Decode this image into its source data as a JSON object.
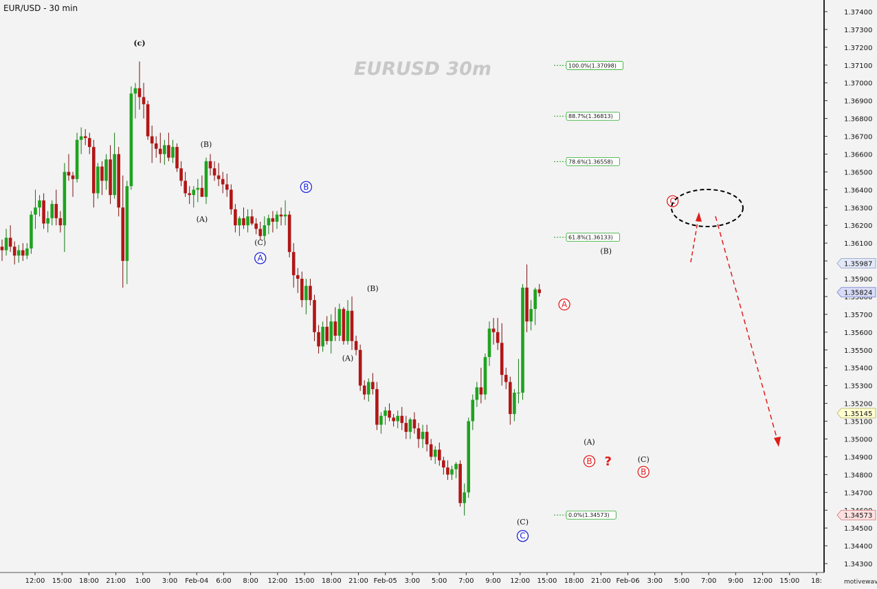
{
  "title": "EUR/USD - 30 min",
  "watermark": "EURUSD  30m",
  "brand": "motivewave.com",
  "colors": {
    "up": "#1fa31f",
    "down": "#b11616",
    "blue": "#1d22d6",
    "red": "#e21b1b",
    "fib": "#22a822",
    "bg": "#f3f3f3"
  },
  "chart_data": {
    "type": "candlestick",
    "ylim": [
      1.3425,
      1.3745
    ],
    "y_ticks": [
      1.343,
      1.344,
      1.345,
      1.346,
      1.347,
      1.348,
      1.349,
      1.35,
      1.351,
      1.352,
      1.353,
      1.354,
      1.355,
      1.356,
      1.357,
      1.358,
      1.359,
      1.36,
      1.361,
      1.362,
      1.363,
      1.364,
      1.365,
      1.366,
      1.367,
      1.368,
      1.369,
      1.37,
      1.371,
      1.372,
      1.373,
      1.374
    ],
    "price_tags": [
      {
        "label": "1.35987",
        "value": 1.35987,
        "color": "#e3e8f8",
        "border": "#8a9ac8"
      },
      {
        "label": "1.35824",
        "value": 1.35824,
        "color": "#d8dcf6",
        "border": "#6c7ac8"
      },
      {
        "label": "1.35145",
        "value": 1.35145,
        "color": "#ffffd0",
        "border": "#b0b060"
      },
      {
        "label": "1.34573",
        "value": 1.34573,
        "color": "#fde0e0",
        "border": "#d07070"
      }
    ],
    "x_ticks": [
      "12:00",
      "15:00",
      "18:00",
      "21:00",
      "1:00",
      "3:00",
      "Feb-04",
      "6:00",
      "8:00",
      "12:00",
      "15:00",
      "18:00",
      "21:00",
      "Feb-05",
      "3:00",
      "5:00",
      "7:00",
      "9:00",
      "12:00",
      "15:00",
      "18:00",
      "21:00",
      "Feb-06",
      "3:00",
      "5:00",
      "7:00",
      "9:00",
      "12:00",
      "15:00",
      "18:"
    ],
    "fib_levels": [
      {
        "label": "100.0%(1.37098)",
        "value": 1.37098
      },
      {
        "label": "88.7%(1.36813)",
        "value": 1.36813
      },
      {
        "label": "78.6%(1.36558)",
        "value": 1.36558
      },
      {
        "label": "61.8%(1.36133)",
        "value": 1.36133
      },
      {
        "label": "0.0%(1.34573)",
        "value": 1.34573
      }
    ],
    "candles": [
      [
        1.3608,
        1.3612,
        1.36,
        1.3606
      ],
      [
        1.3606,
        1.3618,
        1.3603,
        1.3613
      ],
      [
        1.3613,
        1.362,
        1.3605,
        1.3608
      ],
      [
        1.3608,
        1.3611,
        1.3598,
        1.3603
      ],
      [
        1.3603,
        1.3609,
        1.3599,
        1.3606
      ],
      [
        1.3606,
        1.361,
        1.36,
        1.3603
      ],
      [
        1.3603,
        1.361,
        1.3601,
        1.3607
      ],
      [
        1.3607,
        1.3628,
        1.3604,
        1.3626
      ],
      [
        1.3626,
        1.364,
        1.3618,
        1.363
      ],
      [
        1.363,
        1.3637,
        1.3625,
        1.3634
      ],
      [
        1.3634,
        1.3638,
        1.3618,
        1.3621
      ],
      [
        1.3621,
        1.3628,
        1.3616,
        1.3624
      ],
      [
        1.3624,
        1.3634,
        1.362,
        1.3632
      ],
      [
        1.3632,
        1.364,
        1.362,
        1.3624
      ],
      [
        1.3624,
        1.3628,
        1.3616,
        1.362
      ],
      [
        1.362,
        1.3655,
        1.3605,
        1.365
      ],
      [
        1.365,
        1.366,
        1.3645,
        1.3648
      ],
      [
        1.3648,
        1.365,
        1.3636,
        1.3646
      ],
      [
        1.3646,
        1.3672,
        1.3644,
        1.3668
      ],
      [
        1.3668,
        1.3675,
        1.366,
        1.367
      ],
      [
        1.367,
        1.3674,
        1.3665,
        1.3669
      ],
      [
        1.3669,
        1.3672,
        1.366,
        1.3664
      ],
      [
        1.3664,
        1.3668,
        1.363,
        1.3638
      ],
      [
        1.3638,
        1.3655,
        1.3635,
        1.3653
      ],
      [
        1.3653,
        1.3656,
        1.3637,
        1.3645
      ],
      [
        1.3645,
        1.366,
        1.364,
        1.3657
      ],
      [
        1.3657,
        1.3665,
        1.3632,
        1.3637
      ],
      [
        1.3637,
        1.3672,
        1.3635,
        1.366
      ],
      [
        1.366,
        1.3664,
        1.3625,
        1.363
      ],
      [
        1.363,
        1.3648,
        1.3585,
        1.36
      ],
      [
        1.36,
        1.3645,
        1.3587,
        1.3642
      ],
      [
        1.3642,
        1.3698,
        1.364,
        1.3694
      ],
      [
        1.3694,
        1.37,
        1.368,
        1.3697
      ],
      [
        1.3697,
        1.3712,
        1.3685,
        1.3692
      ],
      [
        1.3692,
        1.37,
        1.368,
        1.3688
      ],
      [
        1.3688,
        1.369,
        1.3668,
        1.367
      ],
      [
        1.367,
        1.3676,
        1.3655,
        1.3666
      ],
      [
        1.3666,
        1.367,
        1.3658,
        1.3663
      ],
      [
        1.3663,
        1.3672,
        1.3655,
        1.366
      ],
      [
        1.366,
        1.3668,
        1.3654,
        1.3665
      ],
      [
        1.3665,
        1.3672,
        1.3656,
        1.3658
      ],
      [
        1.3658,
        1.3668,
        1.3655,
        1.3664
      ],
      [
        1.3664,
        1.3666,
        1.365,
        1.3652
      ],
      [
        1.3652,
        1.3656,
        1.3642,
        1.3645
      ],
      [
        1.3645,
        1.365,
        1.3636,
        1.3638
      ],
      [
        1.3638,
        1.3642,
        1.3632,
        1.3637
      ],
      [
        1.3637,
        1.3642,
        1.363,
        1.364
      ],
      [
        1.364,
        1.3646,
        1.3633,
        1.3641
      ],
      [
        1.3641,
        1.3648,
        1.3636,
        1.3636
      ],
      [
        1.3636,
        1.3658,
        1.3632,
        1.3656
      ],
      [
        1.3656,
        1.366,
        1.3648,
        1.3652
      ],
      [
        1.3652,
        1.3656,
        1.3645,
        1.3648
      ],
      [
        1.3648,
        1.3655,
        1.3642,
        1.3646
      ],
      [
        1.3646,
        1.365,
        1.3638,
        1.3643
      ],
      [
        1.3643,
        1.3649,
        1.3636,
        1.364
      ],
      [
        1.364,
        1.3643,
        1.3626,
        1.3629
      ],
      [
        1.3629,
        1.3632,
        1.3616,
        1.362
      ],
      [
        1.362,
        1.3625,
        1.3614,
        1.3624
      ],
      [
        1.3624,
        1.363,
        1.3618,
        1.362
      ],
      [
        1.362,
        1.3629,
        1.3616,
        1.3625
      ],
      [
        1.3625,
        1.3629,
        1.362,
        1.3621
      ],
      [
        1.3621,
        1.3624,
        1.3615,
        1.3618
      ],
      [
        1.3618,
        1.3622,
        1.3612,
        1.3614
      ],
      [
        1.3614,
        1.3625,
        1.3612,
        1.362
      ],
      [
        1.362,
        1.3626,
        1.3615,
        1.3624
      ],
      [
        1.3624,
        1.3628,
        1.3616,
        1.3622
      ],
      [
        1.3622,
        1.3628,
        1.3618,
        1.3626
      ],
      [
        1.3626,
        1.363,
        1.362,
        1.3625
      ],
      [
        1.3625,
        1.3634,
        1.362,
        1.3626
      ],
      [
        1.3626,
        1.3628,
        1.3602,
        1.3605
      ],
      [
        1.3605,
        1.361,
        1.3585,
        1.3592
      ],
      [
        1.3592,
        1.3596,
        1.3582,
        1.359
      ],
      [
        1.359,
        1.3594,
        1.3574,
        1.3578
      ],
      [
        1.3578,
        1.359,
        1.357,
        1.3586
      ],
      [
        1.3586,
        1.359,
        1.3575,
        1.3578
      ],
      [
        1.3578,
        1.3581,
        1.3555,
        1.356
      ],
      [
        1.356,
        1.3564,
        1.3548,
        1.3552
      ],
      [
        1.3552,
        1.3566,
        1.3549,
        1.3563
      ],
      [
        1.3563,
        1.3569,
        1.3553,
        1.3555
      ],
      [
        1.3555,
        1.357,
        1.3548,
        1.3566
      ],
      [
        1.3566,
        1.3574,
        1.3555,
        1.3558
      ],
      [
        1.3558,
        1.3576,
        1.3555,
        1.3573
      ],
      [
        1.3573,
        1.3574,
        1.3553,
        1.3555
      ],
      [
        1.3555,
        1.3578,
        1.3553,
        1.3572
      ],
      [
        1.3572,
        1.358,
        1.355,
        1.3555
      ],
      [
        1.3555,
        1.3558,
        1.3547,
        1.355
      ],
      [
        1.355,
        1.3553,
        1.3527,
        1.353
      ],
      [
        1.353,
        1.3533,
        1.3522,
        1.3525
      ],
      [
        1.3525,
        1.3534,
        1.3521,
        1.3532
      ],
      [
        1.3532,
        1.3537,
        1.3525,
        1.3528
      ],
      [
        1.3528,
        1.3532,
        1.3505,
        1.3508
      ],
      [
        1.3508,
        1.3515,
        1.3503,
        1.3513
      ],
      [
        1.3513,
        1.3518,
        1.3508,
        1.3516
      ],
      [
        1.3516,
        1.352,
        1.351,
        1.3512
      ],
      [
        1.3512,
        1.3514,
        1.3507,
        1.351
      ],
      [
        1.351,
        1.3516,
        1.3506,
        1.3513
      ],
      [
        1.3513,
        1.3518,
        1.3505,
        1.3509
      ],
      [
        1.3509,
        1.3513,
        1.35,
        1.3504
      ],
      [
        1.3504,
        1.3512,
        1.35,
        1.3511
      ],
      [
        1.3511,
        1.3515,
        1.3503,
        1.3506
      ],
      [
        1.3506,
        1.3509,
        1.3495,
        1.35
      ],
      [
        1.35,
        1.3508,
        1.3495,
        1.3504
      ],
      [
        1.3504,
        1.3508,
        1.3493,
        1.3497
      ],
      [
        1.3497,
        1.35,
        1.3488,
        1.349
      ],
      [
        1.349,
        1.3496,
        1.3486,
        1.3494
      ],
      [
        1.3494,
        1.3498,
        1.3485,
        1.3488
      ],
      [
        1.3488,
        1.349,
        1.348,
        1.3484
      ],
      [
        1.3484,
        1.3488,
        1.3477,
        1.348
      ],
      [
        1.348,
        1.3485,
        1.3477,
        1.3483
      ],
      [
        1.3483,
        1.3487,
        1.3478,
        1.3486
      ],
      [
        1.3486,
        1.3488,
        1.3462,
        1.3464
      ],
      [
        1.3464,
        1.3475,
        1.3457,
        1.347
      ],
      [
        1.347,
        1.3512,
        1.3467,
        1.351
      ],
      [
        1.351,
        1.3525,
        1.3505,
        1.3522
      ],
      [
        1.3522,
        1.3532,
        1.3518,
        1.3529
      ],
      [
        1.3529,
        1.354,
        1.352,
        1.3525
      ],
      [
        1.3525,
        1.3548,
        1.3522,
        1.3546
      ],
      [
        1.3546,
        1.3566,
        1.3541,
        1.3562
      ],
      [
        1.3562,
        1.3568,
        1.3553,
        1.356
      ],
      [
        1.356,
        1.3568,
        1.355,
        1.3554
      ],
      [
        1.3554,
        1.3565,
        1.353,
        1.3536
      ],
      [
        1.3536,
        1.354,
        1.3528,
        1.3532
      ],
      [
        1.3532,
        1.3535,
        1.3508,
        1.3514
      ],
      [
        1.3514,
        1.3528,
        1.351,
        1.3526
      ],
      [
        1.3526,
        1.3545,
        1.352,
        1.3526
      ],
      [
        1.3526,
        1.3587,
        1.3522,
        1.3585
      ],
      [
        1.3585,
        1.3598,
        1.356,
        1.3566
      ],
      [
        1.3566,
        1.3578,
        1.3561,
        1.3573
      ],
      [
        1.3573,
        1.3585,
        1.3564,
        1.3584
      ],
      [
        1.3584,
        1.3587,
        1.358,
        1.3582
      ]
    ],
    "wave_labels": [
      {
        "text": "(c)",
        "color": "black",
        "i": 33,
        "value": 1.3721
      },
      {
        "text": "(B)",
        "color": "black",
        "i": 49,
        "value": 1.3664
      },
      {
        "text": "(A)",
        "color": "black",
        "i": 48,
        "value": 1.3622
      },
      {
        "text": "(C)",
        "color": "black",
        "i": 62,
        "value": 1.3609
      },
      {
        "text": "A",
        "color": "blue",
        "circle": true,
        "i": 62,
        "value": 1.36
      },
      {
        "text": "B",
        "color": "blue",
        "circle": true,
        "i": 73,
        "value": 1.364
      },
      {
        "text": "(B)",
        "color": "black",
        "i": 89,
        "value": 1.3583
      },
      {
        "text": "(A)",
        "color": "black",
        "i": 83,
        "value": 1.3544
      },
      {
        "text": "(C)",
        "color": "black",
        "i": 125,
        "value": 1.3452
      },
      {
        "text": "C",
        "color": "blue",
        "circle": true,
        "i": 125,
        "value": 1.3444
      },
      {
        "text": "A",
        "color": "red",
        "circle": true,
        "i": 135,
        "value": 1.3574
      },
      {
        "text": "(B)",
        "color": "darkred",
        "i": 145,
        "value": 1.3604
      },
      {
        "text": "(A)",
        "color": "darkred",
        "i": 141,
        "value": 1.3497
      },
      {
        "text": "B",
        "color": "red",
        "circle": true,
        "i": 141,
        "value": 1.3486
      },
      {
        "text": "?",
        "color": "red",
        "i": 145,
        "value": 1.3486
      },
      {
        "text": "(C)",
        "color": "darkred",
        "i": 154,
        "value": 1.3487
      },
      {
        "text": "B",
        "color": "red",
        "circle": true,
        "i": 154,
        "value": 1.348
      },
      {
        "text": "C",
        "color": "red",
        "circle": true,
        "i": 161,
        "value": 1.3632
      }
    ]
  }
}
